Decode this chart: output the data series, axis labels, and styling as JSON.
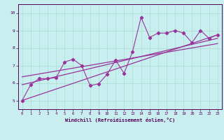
{
  "title": "",
  "xlabel": "Windchill (Refroidissement éolien,°C)",
  "bg_color": "#c8eef0",
  "grid_color": "#aaddcc",
  "line_color": "#993399",
  "xlim": [
    -0.5,
    23.5
  ],
  "ylim": [
    4.5,
    10.5
  ],
  "xticks": [
    0,
    1,
    2,
    3,
    4,
    5,
    6,
    7,
    8,
    9,
    10,
    11,
    12,
    13,
    14,
    15,
    16,
    17,
    18,
    19,
    20,
    21,
    22,
    23
  ],
  "yticks": [
    5,
    6,
    7,
    8,
    9,
    10
  ],
  "scatter_x": [
    0,
    1,
    2,
    3,
    4,
    5,
    6,
    7,
    8,
    9,
    10,
    11,
    12,
    13,
    14,
    15,
    16,
    17,
    18,
    19,
    20,
    21,
    22,
    23
  ],
  "scatter_y": [
    5.0,
    5.9,
    6.25,
    6.25,
    6.3,
    7.2,
    7.35,
    7.0,
    5.85,
    5.95,
    6.5,
    7.3,
    6.55,
    7.8,
    9.75,
    8.6,
    8.85,
    8.85,
    9.0,
    8.85,
    8.3,
    9.0,
    8.55,
    8.75
  ],
  "trend1_x": [
    0,
    23
  ],
  "trend1_y": [
    5.0,
    8.75
  ],
  "trend2_x": [
    0,
    23
  ],
  "trend2_y": [
    5.9,
    8.55
  ],
  "trend3_x": [
    0,
    23
  ],
  "trend3_y": [
    6.35,
    8.25
  ]
}
